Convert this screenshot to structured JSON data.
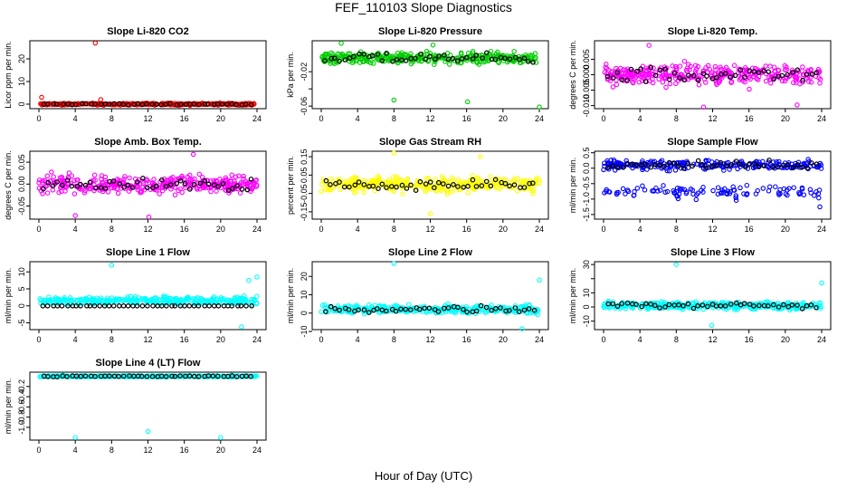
{
  "figure": {
    "title": "FEF_110103  Slope Diagnostics",
    "xlabel": "Hour of Day (UTC)"
  },
  "chart_data": [
    {
      "type": "scatter",
      "title": "Slope Li-820 CO2",
      "ylabel": "Licor ppm per min.",
      "color": "#ff0000",
      "xlim": [
        0,
        24
      ],
      "ylim": [
        -2,
        28
      ],
      "xticks": [
        "0",
        "4",
        "8",
        "12",
        "16",
        "20",
        "24"
      ],
      "yticks": [
        {
          "v": 0,
          "l": "0"
        },
        {
          "v": 10,
          "l": "10"
        },
        {
          "v": 20,
          "l": "20"
        }
      ],
      "series_stats": {
        "mean": 0,
        "spread": 0.6
      },
      "outliers": [
        [
          6.2,
          27
        ],
        [
          0.3,
          3
        ],
        [
          6.8,
          2
        ]
      ]
    },
    {
      "type": "scatter",
      "title": "Slope Li-820 Pressure",
      "ylabel": "kPa per min.",
      "color": "#00cc00",
      "xlim": [
        0,
        24
      ],
      "ylim": [
        -0.063,
        0.016
      ],
      "xticks": [
        "0",
        "4",
        "8",
        "12",
        "16",
        "20",
        "24"
      ],
      "yticks": [
        {
          "v": -0.06,
          "l": "-0.06"
        },
        {
          "v": -0.04,
          "l": ""
        },
        {
          "v": -0.02,
          "l": "-0.02"
        }
      ],
      "series_stats": {
        "mean": -0.004,
        "spread": 0.009
      },
      "outliers": [
        [
          8,
          -0.053
        ],
        [
          16.1,
          -0.055
        ],
        [
          24,
          -0.061
        ],
        [
          2.2,
          0.013
        ],
        [
          12.3,
          0.011
        ]
      ]
    },
    {
      "type": "scatter",
      "title": "Slope Li-820 Temp.",
      "ylabel": "degrees C per min.",
      "color": "#ff00ff",
      "xlim": [
        0,
        24
      ],
      "ylim": [
        -0.011,
        0.011
      ],
      "xticks": [
        "0",
        "4",
        "8",
        "12",
        "16",
        "20",
        "24"
      ],
      "yticks": [
        {
          "v": -0.01,
          "l": "-0.010"
        },
        {
          "v": -0.005,
          "l": "-0.005"
        },
        {
          "v": 0,
          "l": "0.000"
        },
        {
          "v": 0.005,
          "l": "0.005"
        }
      ],
      "series_stats": {
        "mean": 0,
        "spread": 0.0045
      },
      "outliers": [
        [
          11,
          -0.0105
        ],
        [
          21.3,
          -0.0098
        ],
        [
          5,
          0.0095
        ]
      ]
    },
    {
      "type": "scatter",
      "title": "Slope Amb. Box Temp.",
      "ylabel": "degrees C per min.",
      "color": "#ff00ff",
      "xlim": [
        0,
        24
      ],
      "ylim": [
        -0.08,
        0.075
      ],
      "xticks": [
        "0",
        "4",
        "8",
        "12",
        "16",
        "20",
        "24"
      ],
      "yticks": [
        {
          "v": -0.05,
          "l": "-0.05"
        },
        {
          "v": 0,
          "l": "0.00"
        },
        {
          "v": 0.05,
          "l": "0.05"
        }
      ],
      "series_stats": {
        "mean": 0,
        "spread": 0.03
      },
      "outliers": [
        [
          4,
          -0.072
        ],
        [
          12.1,
          -0.075
        ],
        [
          17,
          0.068
        ]
      ]
    },
    {
      "type": "scatter",
      "title": "Slope Gas Stream RH",
      "ylabel": "percent per min.",
      "color": "#ffff00",
      "xlim": [
        0,
        24
      ],
      "ylim": [
        -0.19,
        0.18
      ],
      "xticks": [
        "0",
        "4",
        "8",
        "12",
        "16",
        "20",
        "24"
      ],
      "yticks": [
        {
          "v": -0.15,
          "l": "-0.15"
        },
        {
          "v": -0.05,
          "l": "-0.05"
        },
        {
          "v": 0.05,
          "l": "0.05"
        },
        {
          "v": 0.15,
          "l": "0.15"
        }
      ],
      "series_stats": {
        "mean": 0,
        "spread": 0.055
      },
      "outliers": [
        [
          8,
          0.17
        ],
        [
          12,
          -0.16
        ],
        [
          17.5,
          0.15
        ]
      ]
    },
    {
      "type": "scatter",
      "title": "Slope Sample Flow",
      "ylabel": "ml/min per min.",
      "color": "#0000ff",
      "xlim": [
        0,
        24
      ],
      "ylim": [
        -1.65,
        0.55
      ],
      "xticks": [
        "0",
        "4",
        "8",
        "12",
        "16",
        "20",
        "24"
      ],
      "yticks": [
        {
          "v": -1.5,
          "l": "-1.5"
        },
        {
          "v": -1.0,
          "l": "-1.0"
        },
        {
          "v": -0.5,
          "l": "-0.5"
        },
        {
          "v": 0,
          "l": "0.0"
        },
        {
          "v": 0.5,
          "l": "0.5"
        }
      ],
      "series_stats": {
        "mean": 0.1,
        "spread": 0.2
      },
      "outliers": [
        [
          23.8,
          -1.25
        ]
      ]
    },
    {
      "type": "scatter",
      "title": "Slope Line 1 Flow",
      "ylabel": "ml/min per min.",
      "color": "#00ffff",
      "xlim": [
        0,
        24
      ],
      "ylim": [
        -7,
        13
      ],
      "xticks": [
        "0",
        "4",
        "8",
        "12",
        "16",
        "20",
        "24"
      ],
      "yticks": [
        {
          "v": -5,
          "l": "-5"
        },
        {
          "v": 0,
          "l": "0"
        },
        {
          "v": 5,
          "l": "5"
        },
        {
          "v": 10,
          "l": "10"
        }
      ],
      "series_stats": {
        "mean": 1.5,
        "spread": 1.5
      },
      "outliers": [
        [
          8,
          12
        ],
        [
          22.3,
          -6.2
        ],
        [
          24,
          8.5
        ],
        [
          23.1,
          7.5
        ]
      ]
    },
    {
      "type": "scatter",
      "title": "Slope Line 2 Flow",
      "ylabel": "ml/min per min.",
      "color": "#00ffff",
      "xlim": [
        0,
        24
      ],
      "ylim": [
        -9,
        28
      ],
      "xticks": [
        "0",
        "4",
        "8",
        "12",
        "16",
        "20",
        "24"
      ],
      "yticks": [
        {
          "v": -10,
          "l": "-10"
        },
        {
          "v": 0,
          "l": "0"
        },
        {
          "v": 10,
          "l": "10"
        },
        {
          "v": 20,
          "l": "20"
        }
      ],
      "series_stats": {
        "mean": 2,
        "spread": 3
      },
      "outliers": [
        [
          8,
          27
        ],
        [
          24,
          18
        ],
        [
          22.1,
          -8.5
        ]
      ]
    },
    {
      "type": "scatter",
      "title": "Slope Line 3 Flow",
      "ylabel": "ml/min per min.",
      "color": "#00ffff",
      "xlim": [
        0,
        24
      ],
      "ylim": [
        -16,
        32
      ],
      "xticks": [
        "0",
        "4",
        "8",
        "12",
        "16",
        "20",
        "24"
      ],
      "yticks": [
        {
          "v": -10,
          "l": "-10"
        },
        {
          "v": 0,
          "l": "0"
        },
        {
          "v": 10,
          "l": "10"
        },
        {
          "v": 20,
          "l": ""
        },
        {
          "v": 30,
          "l": "30"
        }
      ],
      "series_stats": {
        "mean": 1,
        "spread": 3.5
      },
      "outliers": [
        [
          8,
          30
        ],
        [
          24,
          17
        ],
        [
          11.9,
          -13
        ]
      ]
    },
    {
      "type": "scatter",
      "title": "Slope Line 4 (LT) Flow",
      "ylabel": "ml/min per min.",
      "color": "#00ffff",
      "xlim": [
        0,
        24
      ],
      "ylim": [
        -1.25,
        0.08
      ],
      "xticks": [
        "0",
        "4",
        "8",
        "12",
        "16",
        "20",
        "24"
      ],
      "yticks": [
        {
          "v": -1.0,
          "l": "-1.0"
        },
        {
          "v": -0.8,
          "l": "-0.8"
        },
        {
          "v": -0.6,
          "l": "-0.6"
        },
        {
          "v": -0.4,
          "l": "-0.4"
        },
        {
          "v": -0.2,
          "l": "-0.2"
        }
      ],
      "series_stats": {
        "mean": 0,
        "spread": 0.02
      },
      "outliers": [
        [
          4,
          -1.2
        ],
        [
          12,
          -1.08
        ],
        [
          20,
          -1.2
        ]
      ]
    }
  ]
}
